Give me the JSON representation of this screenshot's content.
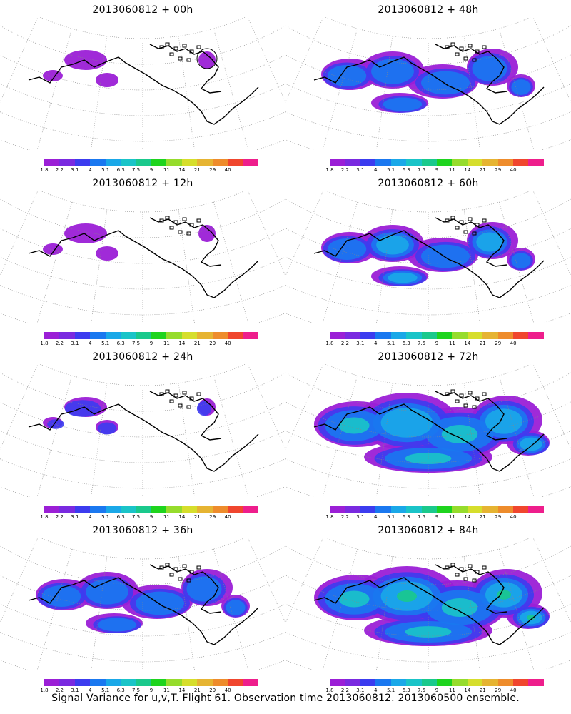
{
  "caption": "Signal Variance for u,v,T. Flight 61. Observation time 2013060812. 2013060500 ensemble.",
  "colorbar": {
    "colors": [
      "#9b1fd6",
      "#7a2ae0",
      "#3c3cef",
      "#1a78f0",
      "#1aa8e8",
      "#1ac4c8",
      "#1ac98c",
      "#1ed41e",
      "#96dc2c",
      "#d6de2c",
      "#e6b432",
      "#ee8c2c",
      "#f0462e",
      "#ee1e8c"
    ],
    "labels": [
      "1.8",
      "2.2",
      "3.1",
      "4",
      "5.1",
      "6.3",
      "7.5",
      "9",
      "11",
      "14",
      "21",
      "29",
      "40"
    ]
  },
  "panels": [
    {
      "title": "2013060812 + 00h",
      "level": 0
    },
    {
      "title": "2013060812 + 48h",
      "level": 2
    },
    {
      "title": "2013060812 + 12h",
      "level": 0
    },
    {
      "title": "2013060812 + 60h",
      "level": 3
    },
    {
      "title": "2013060812 + 24h",
      "level": 1
    },
    {
      "title": "2013060812 + 72h",
      "level": 4
    },
    {
      "title": "2013060812 + 36h",
      "level": 2
    },
    {
      "title": "2013060812 + 84h",
      "level": 5
    }
  ]
}
